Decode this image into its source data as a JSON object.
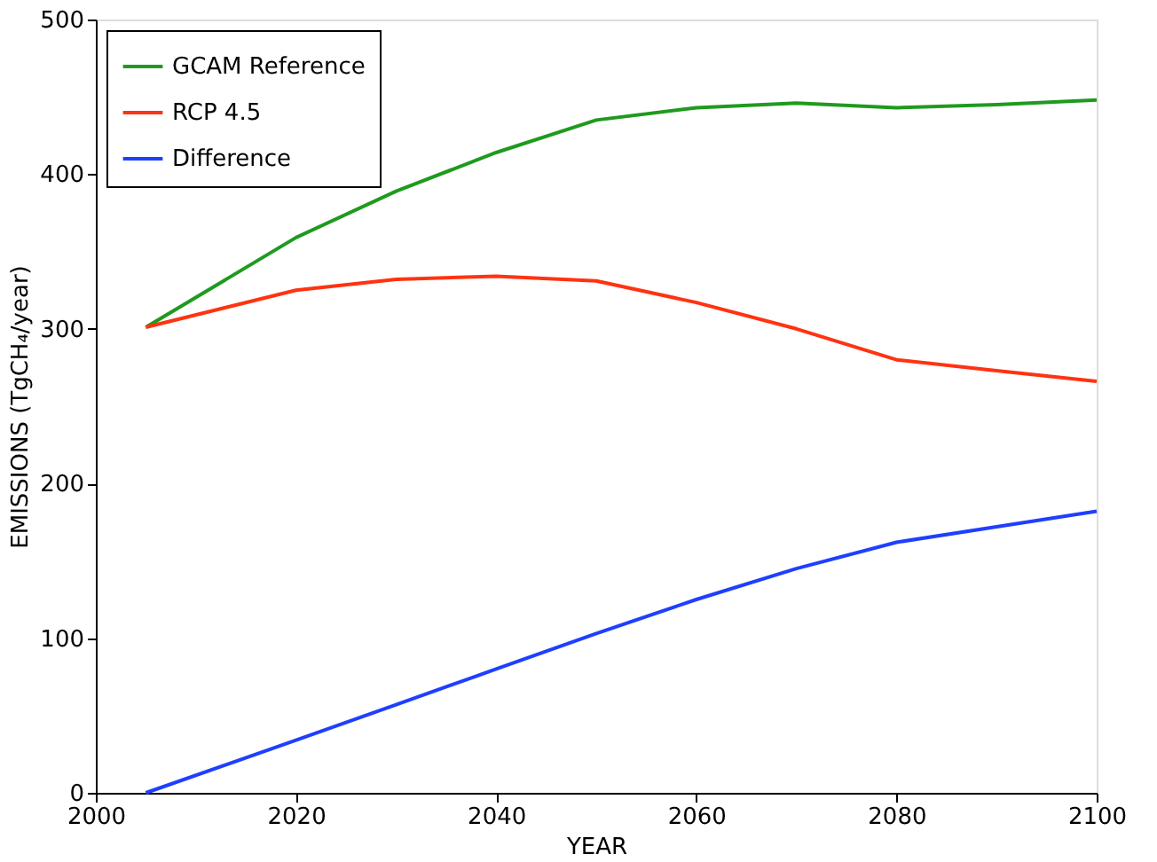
{
  "chart_data": {
    "type": "line",
    "xlabel": "YEAR",
    "ylabel": "EMISSIONS (TgCH₄/year)",
    "x": [
      2005,
      2020,
      2030,
      2040,
      2050,
      2060,
      2070,
      2080,
      2090,
      2100
    ],
    "series": [
      {
        "name": "GCAM Reference",
        "color": "#1f9a1f",
        "values": [
          301,
          359,
          389,
          414,
          435,
          443,
          446,
          443,
          445,
          448
        ]
      },
      {
        "name": "RCP 4.5",
        "color": "#ff3311",
        "values": [
          301,
          325,
          332,
          334,
          331,
          317,
          300,
          280,
          273,
          266
        ]
      },
      {
        "name": "Difference",
        "color": "#1f3fff",
        "values": [
          0,
          34,
          57,
          80,
          103,
          125,
          145,
          162,
          172,
          182
        ]
      }
    ],
    "xlim": [
      2000,
      2100
    ],
    "xticks": [
      2000,
      2020,
      2040,
      2060,
      2080,
      2100
    ],
    "ylim": [
      0,
      500
    ],
    "yticks": [
      0,
      100,
      200,
      300,
      400,
      500
    ],
    "grid": false,
    "legend": "top left",
    "marker": "none",
    "line_style": "solid"
  }
}
